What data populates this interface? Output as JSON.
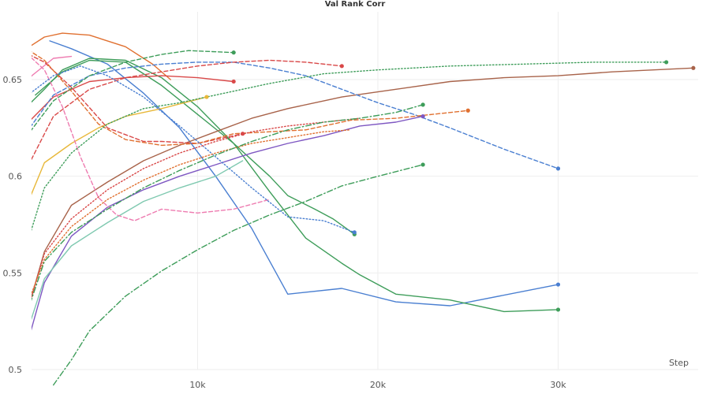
{
  "chart_data": {
    "type": "line",
    "title": "Val Rank Corr",
    "xlabel": "Step",
    "ylabel": "",
    "xlim": [
      0,
      38000
    ],
    "ylim": [
      0.5,
      0.68
    ],
    "x_ticks": [
      10000,
      20000,
      30000
    ],
    "x_tick_labels": [
      "10k",
      "20k",
      "30k"
    ],
    "y_ticks": [
      0.5,
      0.55,
      0.6,
      0.65
    ],
    "y_tick_labels": [
      "0.5",
      "0.55",
      "0.6",
      "0.65"
    ],
    "grid": true,
    "legend": "none",
    "series": [
      {
        "color": "#4a7fd1",
        "dash": "solid",
        "end_marker": true,
        "points": [
          [
            1800,
            0.67
          ],
          [
            3000,
            0.666
          ],
          [
            5000,
            0.658
          ],
          [
            7000,
            0.643
          ],
          [
            9000,
            0.625
          ],
          [
            11000,
            0.6
          ],
          [
            13000,
            0.573
          ],
          [
            15000,
            0.539
          ],
          [
            18000,
            0.542
          ],
          [
            21000,
            0.535
          ],
          [
            24000,
            0.533
          ],
          [
            30000,
            0.544
          ]
        ]
      },
      {
        "color": "#3e9d5a",
        "dash": "solid",
        "end_marker": true,
        "points": [
          [
            300,
            0.634
          ],
          [
            1500,
            0.645
          ],
          [
            2500,
            0.655
          ],
          [
            4000,
            0.661
          ],
          [
            6000,
            0.66
          ],
          [
            8000,
            0.651
          ],
          [
            10000,
            0.636
          ],
          [
            12000,
            0.617
          ],
          [
            14000,
            0.592
          ],
          [
            16000,
            0.568
          ],
          [
            18000,
            0.555
          ],
          [
            19000,
            0.549
          ],
          [
            21000,
            0.539
          ],
          [
            24000,
            0.536
          ],
          [
            27000,
            0.53
          ],
          [
            30000,
            0.531
          ]
        ]
      },
      {
        "color": "#3e9d5a",
        "dash": "solid",
        "end_marker": true,
        "points": [
          [
            1000,
            0.642
          ],
          [
            2500,
            0.654
          ],
          [
            4000,
            0.66
          ],
          [
            6000,
            0.659
          ],
          [
            8000,
            0.647
          ],
          [
            10000,
            0.632
          ],
          [
            12000,
            0.617
          ],
          [
            14000,
            0.6
          ],
          [
            15000,
            0.59
          ],
          [
            16500,
            0.583
          ],
          [
            17500,
            0.578
          ],
          [
            18700,
            0.57
          ]
        ]
      },
      {
        "color": "#e07030",
        "dash": "solid",
        "end_marker": false,
        "points": [
          [
            -300,
            0.648
          ],
          [
            500,
            0.666
          ],
          [
            1500,
            0.672
          ],
          [
            2500,
            0.674
          ],
          [
            4000,
            0.673
          ],
          [
            6000,
            0.667
          ],
          [
            7500,
            0.658
          ],
          [
            8500,
            0.65
          ]
        ]
      },
      {
        "color": "#ee7bb0",
        "dash": "solid",
        "end_marker": false,
        "points": [
          [
            -300,
            0.637
          ],
          [
            800,
            0.652
          ],
          [
            2000,
            0.661
          ],
          [
            3000,
            0.662
          ]
        ]
      },
      {
        "color": "#d94848",
        "dash": "solid",
        "end_marker": true,
        "points": [
          [
            300,
            0.625
          ],
          [
            2000,
            0.641
          ],
          [
            4000,
            0.649
          ],
          [
            6000,
            0.651
          ],
          [
            8000,
            0.652
          ],
          [
            10000,
            0.651
          ],
          [
            12000,
            0.649
          ]
        ]
      },
      {
        "color": "#e8b83a",
        "dash": "solid",
        "end_marker": true,
        "points": [
          [
            300,
            0.58
          ],
          [
            1500,
            0.607
          ],
          [
            3000,
            0.617
          ],
          [
            4500,
            0.625
          ],
          [
            6000,
            0.631
          ],
          [
            8000,
            0.635
          ],
          [
            10500,
            0.641
          ]
        ]
      },
      {
        "color": "#a8634a",
        "dash": "solid",
        "end_marker": true,
        "points": [
          [
            300,
            0.522
          ],
          [
            1500,
            0.561
          ],
          [
            3000,
            0.585
          ],
          [
            5000,
            0.597
          ],
          [
            7000,
            0.608
          ],
          [
            9000,
            0.616
          ],
          [
            11000,
            0.623
          ],
          [
            13000,
            0.63
          ],
          [
            15000,
            0.635
          ],
          [
            18000,
            0.641
          ],
          [
            21000,
            0.645
          ],
          [
            24000,
            0.649
          ],
          [
            27000,
            0.651
          ],
          [
            30000,
            0.652
          ],
          [
            33000,
            0.654
          ],
          [
            37500,
            0.656
          ]
        ]
      },
      {
        "color": "#7e57c2",
        "dash": "solid",
        "end_marker": true,
        "points": [
          [
            300,
            0.505
          ],
          [
            1500,
            0.545
          ],
          [
            3000,
            0.569
          ],
          [
            5000,
            0.584
          ],
          [
            7000,
            0.593
          ],
          [
            9000,
            0.6
          ],
          [
            11000,
            0.606
          ],
          [
            13000,
            0.612
          ],
          [
            15000,
            0.617
          ],
          [
            17000,
            0.621
          ],
          [
            19000,
            0.626
          ],
          [
            21000,
            0.628
          ],
          [
            22500,
            0.631
          ]
        ]
      },
      {
        "color": "#7fc9b0",
        "dash": "solid",
        "end_marker": false,
        "points": [
          [
            0,
            0.504
          ],
          [
            1500,
            0.547
          ],
          [
            3000,
            0.564
          ],
          [
            5000,
            0.576
          ],
          [
            7000,
            0.587
          ],
          [
            9000,
            0.594
          ],
          [
            11000,
            0.6
          ],
          [
            12500,
            0.608
          ]
        ]
      },
      {
        "color": "#4a7fd1",
        "dash": "dashed",
        "end_marker": true,
        "points": [
          [
            300,
            0.62
          ],
          [
            2000,
            0.642
          ],
          [
            4000,
            0.652
          ],
          [
            6000,
            0.656
          ],
          [
            8000,
            0.658
          ],
          [
            10000,
            0.659
          ],
          [
            12000,
            0.659
          ],
          [
            14000,
            0.656
          ],
          [
            16000,
            0.652
          ],
          [
            18000,
            0.645
          ],
          [
            20000,
            0.638
          ],
          [
            22000,
            0.632
          ],
          [
            24000,
            0.625
          ],
          [
            27000,
            0.614
          ],
          [
            30000,
            0.604
          ]
        ]
      },
      {
        "color": "#3e9d5a",
        "dash": "dashed",
        "end_marker": true,
        "points": [
          [
            300,
            0.618
          ],
          [
            2000,
            0.639
          ],
          [
            4000,
            0.652
          ],
          [
            6000,
            0.659
          ],
          [
            8000,
            0.663
          ],
          [
            9500,
            0.665
          ],
          [
            12000,
            0.664
          ]
        ]
      },
      {
        "color": "#d94848",
        "dash": "dashed",
        "end_marker": true,
        "points": [
          [
            0,
            0.666
          ],
          [
            1500,
            0.659
          ],
          [
            3000,
            0.646
          ],
          [
            5000,
            0.625
          ],
          [
            7000,
            0.618
          ],
          [
            8000,
            0.618
          ],
          [
            10000,
            0.617
          ],
          [
            12500,
            0.622
          ]
        ]
      },
      {
        "color": "#d94848",
        "dash": "dashed",
        "end_marker": true,
        "points": [
          [
            300,
            0.6
          ],
          [
            2000,
            0.631
          ],
          [
            4000,
            0.645
          ],
          [
            6000,
            0.651
          ],
          [
            8000,
            0.654
          ],
          [
            10000,
            0.657
          ],
          [
            12000,
            0.659
          ],
          [
            14000,
            0.66
          ],
          [
            16000,
            0.659
          ],
          [
            18000,
            0.657
          ]
        ]
      },
      {
        "color": "#e07030",
        "dash": "dashed",
        "end_marker": true,
        "points": [
          [
            0,
            0.669
          ],
          [
            1500,
            0.66
          ],
          [
            3000,
            0.644
          ],
          [
            4500,
            0.627
          ],
          [
            6000,
            0.619
          ],
          [
            8000,
            0.616
          ],
          [
            10000,
            0.617
          ],
          [
            12000,
            0.622
          ],
          [
            14000,
            0.623
          ],
          [
            16000,
            0.624
          ],
          [
            18500,
            0.629
          ],
          [
            21000,
            0.63
          ],
          [
            23000,
            0.632
          ],
          [
            25000,
            0.634
          ]
        ]
      },
      {
        "color": "#ee7bb0",
        "dash": "dashed",
        "end_marker": false,
        "points": [
          [
            0,
            0.668
          ],
          [
            1500,
            0.655
          ],
          [
            2500,
            0.636
          ],
          [
            3500,
            0.61
          ],
          [
            4500,
            0.589
          ],
          [
            5500,
            0.58
          ],
          [
            6500,
            0.577
          ],
          [
            8000,
            0.583
          ],
          [
            10000,
            0.581
          ],
          [
            12000,
            0.583
          ],
          [
            14000,
            0.588
          ]
        ]
      },
      {
        "color": "#3e9d5a",
        "dash": "dotted",
        "end_marker": true,
        "points": [
          [
            300,
            0.558
          ],
          [
            1500,
            0.594
          ],
          [
            3000,
            0.612
          ],
          [
            5000,
            0.627
          ],
          [
            7000,
            0.635
          ],
          [
            9000,
            0.638
          ],
          [
            11000,
            0.642
          ],
          [
            14000,
            0.648
          ],
          [
            17000,
            0.653
          ],
          [
            20000,
            0.655
          ],
          [
            24000,
            0.657
          ],
          [
            28000,
            0.658
          ],
          [
            32000,
            0.659
          ],
          [
            36000,
            0.659
          ]
        ]
      },
      {
        "color": "#4a7fd1",
        "dash": "dotted",
        "end_marker": true,
        "points": [
          [
            300,
            0.64
          ],
          [
            2000,
            0.652
          ],
          [
            3500,
            0.657
          ],
          [
            5000,
            0.652
          ],
          [
            7000,
            0.641
          ],
          [
            9000,
            0.626
          ],
          [
            11000,
            0.61
          ],
          [
            13000,
            0.594
          ],
          [
            15000,
            0.579
          ],
          [
            17000,
            0.577
          ],
          [
            18700,
            0.571
          ]
        ]
      },
      {
        "color": "#d94848",
        "dash": "dotted",
        "end_marker": false,
        "points": [
          [
            300,
            0.522
          ],
          [
            1500,
            0.56
          ],
          [
            3000,
            0.578
          ],
          [
            5000,
            0.593
          ],
          [
            7000,
            0.604
          ],
          [
            9000,
            0.612
          ],
          [
            11000,
            0.618
          ],
          [
            13000,
            0.623
          ],
          [
            15000,
            0.626
          ],
          [
            17000,
            0.628
          ],
          [
            19000,
            0.63
          ]
        ]
      },
      {
        "color": "#e07030",
        "dash": "dotted",
        "end_marker": false,
        "points": [
          [
            0,
            0.52
          ],
          [
            1500,
            0.557
          ],
          [
            3000,
            0.574
          ],
          [
            5000,
            0.588
          ],
          [
            7000,
            0.598
          ],
          [
            9000,
            0.606
          ],
          [
            11000,
            0.612
          ],
          [
            13000,
            0.617
          ],
          [
            15000,
            0.62
          ],
          [
            17000,
            0.623
          ],
          [
            18500,
            0.624
          ]
        ]
      },
      {
        "color": "#3e9d5a",
        "dash": "dashdot",
        "end_marker": true,
        "points": [
          [
            300,
            0.523
          ],
          [
            1500,
            0.556
          ],
          [
            3000,
            0.571
          ],
          [
            5000,
            0.583
          ],
          [
            7000,
            0.594
          ],
          [
            9000,
            0.603
          ],
          [
            11000,
            0.611
          ],
          [
            13000,
            0.618
          ],
          [
            15000,
            0.624
          ],
          [
            17000,
            0.628
          ],
          [
            19000,
            0.63
          ],
          [
            21000,
            0.633
          ],
          [
            22500,
            0.637
          ]
        ]
      },
      {
        "color": "#3e9d5a",
        "dash": "dashdot",
        "end_marker": true,
        "points": [
          [
            2000,
            0.492
          ],
          [
            3000,
            0.505
          ],
          [
            4000,
            0.52
          ],
          [
            6000,
            0.538
          ],
          [
            8000,
            0.551
          ],
          [
            10000,
            0.562
          ],
          [
            12000,
            0.572
          ],
          [
            14000,
            0.58
          ],
          [
            16000,
            0.587
          ],
          [
            18000,
            0.595
          ],
          [
            20000,
            0.6
          ],
          [
            22500,
            0.606
          ]
        ]
      }
    ]
  }
}
